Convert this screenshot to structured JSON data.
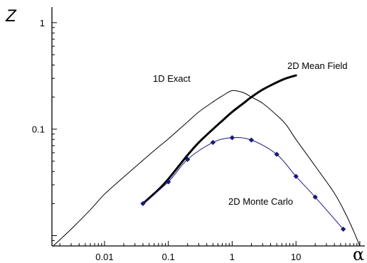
{
  "chart_data": {
    "type": "line",
    "xscale": "log",
    "yscale": "log",
    "xlim": [
      0.0015,
      120
    ],
    "ylim": [
      0.008,
      1.4
    ],
    "xlabel": "α",
    "ylabel": "Z",
    "xticks": [
      0.01,
      0.1,
      1,
      10
    ],
    "xtick_labels": [
      "0.01",
      "0.1",
      "1",
      "10"
    ],
    "yticks": [
      0.1,
      1
    ],
    "ytick_labels": [
      "0.1",
      "1"
    ],
    "grid": false,
    "legend": "none",
    "series": [
      {
        "name": "1D Exact",
        "color": "#000000",
        "line_width": "thin",
        "markers": false,
        "x": [
          0.0015,
          0.003,
          0.006,
          0.01,
          0.02,
          0.04,
          0.07,
          0.1,
          0.2,
          0.3,
          0.5,
          0.7,
          1.0,
          1.5,
          2.0,
          3.0,
          5.0,
          7.0,
          10.0,
          20.0,
          40.0,
          60.0,
          80.0,
          100.0
        ],
        "y": [
          0.0078,
          0.0115,
          0.0175,
          0.0245,
          0.0355,
          0.051,
          0.068,
          0.081,
          0.117,
          0.145,
          0.18,
          0.205,
          0.23,
          0.22,
          0.2,
          0.175,
          0.135,
          0.11,
          0.08,
          0.045,
          0.025,
          0.016,
          0.011,
          0.008
        ]
      },
      {
        "name": "2D Mean Field",
        "color": "#000000",
        "line_width": "thick",
        "markers": false,
        "x": [
          0.04,
          0.07,
          0.1,
          0.2,
          0.3,
          0.5,
          0.7,
          1.0,
          1.5,
          2.0,
          3.0,
          5.0,
          7.0,
          10.0
        ],
        "y": [
          0.02,
          0.027,
          0.034,
          0.057,
          0.075,
          0.1,
          0.12,
          0.145,
          0.175,
          0.2,
          0.235,
          0.275,
          0.3,
          0.32
        ]
      },
      {
        "name": "2D Monte Carlo",
        "color": "#1a1a7a",
        "line_width": "thin",
        "markers": true,
        "x": [
          0.04,
          0.1,
          0.2,
          0.5,
          1.0,
          2.0,
          5.0,
          10.0,
          20.0,
          55.0
        ],
        "y": [
          0.02,
          0.032,
          0.052,
          0.075,
          0.083,
          0.079,
          0.058,
          0.036,
          0.023,
          0.0115
        ]
      }
    ]
  }
}
